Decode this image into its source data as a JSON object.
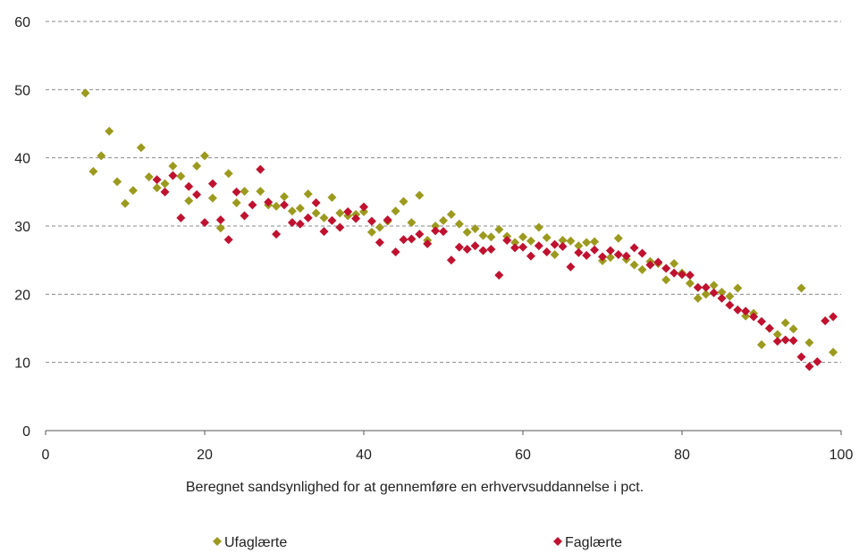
{
  "chart_data": {
    "type": "scatter",
    "title": "",
    "xlabel": "Beregnet sandsynlighed for at gennemføre en erhvervsuddannelse i pct.",
    "ylabel": "",
    "xlim": [
      0,
      100
    ],
    "ylim": [
      0,
      60
    ],
    "x_ticks": [
      "0",
      "20",
      "40",
      "60",
      "80",
      "100"
    ],
    "y_ticks": [
      "0",
      "10",
      "20",
      "30",
      "40",
      "50",
      "60"
    ],
    "grid": "horizontal dashed",
    "legend_position": "bottom",
    "colors": {
      "Ufaglærte": "#9c9a1e",
      "Faglærte": "#c0112f"
    },
    "series": [
      {
        "name": "Ufaglærte",
        "points": [
          [
            5,
            49.5
          ],
          [
            6,
            38
          ],
          [
            7,
            40.3
          ],
          [
            8,
            43.9
          ],
          [
            9,
            36.5
          ],
          [
            10,
            33.3
          ],
          [
            11,
            35.2
          ],
          [
            12,
            41.5
          ],
          [
            13,
            37.2
          ],
          [
            14,
            35.6
          ],
          [
            15,
            36.2
          ],
          [
            16,
            38.8
          ],
          [
            17,
            37.3
          ],
          [
            18,
            33.7
          ],
          [
            19,
            38.8
          ],
          [
            20,
            40.3
          ],
          [
            21,
            34.1
          ],
          [
            22,
            29.7
          ],
          [
            23,
            37.7
          ],
          [
            24,
            33.4
          ],
          [
            25,
            35.1
          ],
          [
            27,
            35.1
          ],
          [
            28,
            33.1
          ],
          [
            29,
            32.9
          ],
          [
            30,
            34.3
          ],
          [
            31,
            32.2
          ],
          [
            32,
            32.6
          ],
          [
            33,
            34.7
          ],
          [
            34,
            31.9
          ],
          [
            35,
            31.2
          ],
          [
            36,
            34.2
          ],
          [
            37,
            31.9
          ],
          [
            38,
            31.5
          ],
          [
            39,
            31.7
          ],
          [
            40,
            32.1
          ],
          [
            41,
            29.1
          ],
          [
            42,
            29.8
          ],
          [
            43,
            30.7
          ],
          [
            44,
            32.2
          ],
          [
            45,
            33.6
          ],
          [
            46,
            30.5
          ],
          [
            47,
            34.5
          ],
          [
            48,
            27.9
          ],
          [
            49,
            30
          ],
          [
            50,
            30.8
          ],
          [
            51,
            31.7
          ],
          [
            52,
            30.3
          ],
          [
            53,
            29.1
          ],
          [
            54,
            29.6
          ],
          [
            55,
            28.6
          ],
          [
            56,
            28.4
          ],
          [
            57,
            29.5
          ],
          [
            58,
            28.5
          ],
          [
            59,
            27.6
          ],
          [
            60,
            28.4
          ],
          [
            61,
            27.8
          ],
          [
            62,
            29.8
          ],
          [
            63,
            28.3
          ],
          [
            64,
            25.8
          ],
          [
            65,
            27.9
          ],
          [
            66,
            27.8
          ],
          [
            67,
            27.1
          ],
          [
            68,
            27.6
          ],
          [
            69,
            27.7
          ],
          [
            70,
            24.9
          ],
          [
            71,
            25.4
          ],
          [
            72,
            28.2
          ],
          [
            73,
            25.1
          ],
          [
            74,
            24.3
          ],
          [
            75,
            23.6
          ],
          [
            76,
            24.8
          ],
          [
            77,
            24.5
          ],
          [
            78,
            22.1
          ],
          [
            79,
            24.5
          ],
          [
            80,
            23.1
          ],
          [
            81,
            21.6
          ],
          [
            82,
            19.4
          ],
          [
            83,
            20
          ],
          [
            84,
            21.3
          ],
          [
            85,
            20.3
          ],
          [
            86,
            19.7
          ],
          [
            87,
            20.9
          ],
          [
            88,
            16.8
          ],
          [
            89,
            17.2
          ],
          [
            90,
            12.6
          ],
          [
            91,
            15
          ],
          [
            92,
            14.1
          ],
          [
            93,
            15.8
          ],
          [
            94,
            14.9
          ],
          [
            95,
            20.9
          ],
          [
            96,
            12.9
          ],
          [
            99,
            11.5
          ]
        ]
      },
      {
        "name": "Faglærte",
        "points": [
          [
            14,
            36.8
          ],
          [
            15,
            35
          ],
          [
            16,
            37.4
          ],
          [
            17,
            31.2
          ],
          [
            18,
            35.8
          ],
          [
            19,
            34.6
          ],
          [
            20,
            30.5
          ],
          [
            21,
            36.2
          ],
          [
            22,
            30.9
          ],
          [
            23,
            28
          ],
          [
            24,
            35
          ],
          [
            25,
            31.5
          ],
          [
            26,
            33.1
          ],
          [
            27,
            38.3
          ],
          [
            28,
            33.5
          ],
          [
            29,
            28.8
          ],
          [
            30,
            33.1
          ],
          [
            31,
            30.5
          ],
          [
            32,
            30.3
          ],
          [
            33,
            31.2
          ],
          [
            34,
            33.4
          ],
          [
            35,
            29.2
          ],
          [
            36,
            30.8
          ],
          [
            37,
            29.8
          ],
          [
            38,
            32.1
          ],
          [
            39,
            31.1
          ],
          [
            40,
            32.8
          ],
          [
            41,
            30.7
          ],
          [
            42,
            27.6
          ],
          [
            43,
            30.9
          ],
          [
            44,
            26.2
          ],
          [
            45,
            28
          ],
          [
            46,
            28.1
          ],
          [
            47,
            28.8
          ],
          [
            48,
            27.4
          ],
          [
            49,
            29.3
          ],
          [
            50,
            29.2
          ],
          [
            51,
            25
          ],
          [
            52,
            26.9
          ],
          [
            53,
            26.6
          ],
          [
            54,
            27.1
          ],
          [
            55,
            26.4
          ],
          [
            56,
            26.6
          ],
          [
            57,
            22.8
          ],
          [
            58,
            27.9
          ],
          [
            59,
            26.8
          ],
          [
            60,
            26.9
          ],
          [
            61,
            25.6
          ],
          [
            62,
            27.1
          ],
          [
            63,
            26.2
          ],
          [
            64,
            27.3
          ],
          [
            65,
            27
          ],
          [
            66,
            24
          ],
          [
            67,
            26.1
          ],
          [
            68,
            25.7
          ],
          [
            69,
            26.5
          ],
          [
            70,
            25.5
          ],
          [
            71,
            26.4
          ],
          [
            72,
            25.8
          ],
          [
            73,
            25.6
          ],
          [
            74,
            26.8
          ],
          [
            75,
            26
          ],
          [
            76,
            24.3
          ],
          [
            77,
            24.7
          ],
          [
            78,
            23.8
          ],
          [
            79,
            23.1
          ],
          [
            80,
            22.9
          ],
          [
            81,
            22.8
          ],
          [
            82,
            21
          ],
          [
            83,
            21
          ],
          [
            84,
            20.2
          ],
          [
            85,
            19.4
          ],
          [
            86,
            18.4
          ],
          [
            87,
            17.7
          ],
          [
            88,
            17.5
          ],
          [
            89,
            16.7
          ],
          [
            90,
            16
          ],
          [
            91,
            15
          ],
          [
            92,
            13.1
          ],
          [
            93,
            13.3
          ],
          [
            94,
            13.2
          ],
          [
            95,
            10.8
          ],
          [
            96,
            9.4
          ],
          [
            97,
            10.1
          ],
          [
            98,
            16.1
          ],
          [
            99,
            16.7
          ]
        ]
      }
    ]
  }
}
